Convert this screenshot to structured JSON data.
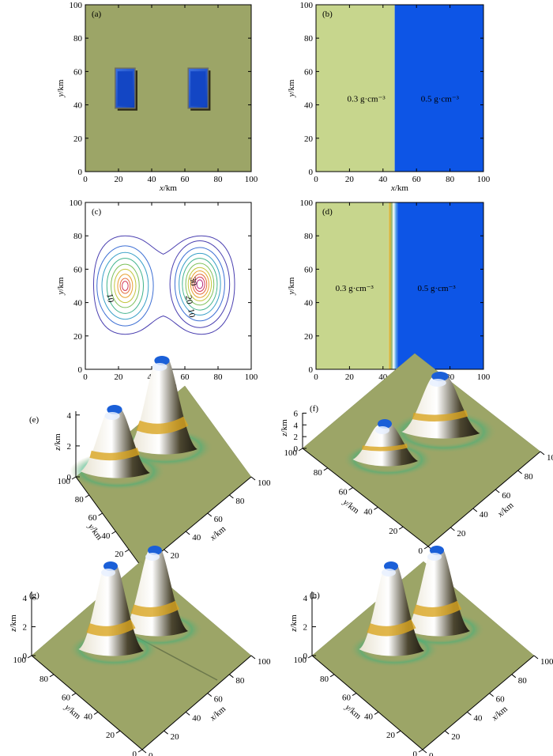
{
  "chart_data": [
    {
      "id": "a",
      "type": "heatmap",
      "panel_label": "(a)",
      "title": "",
      "xlabel": "x/km",
      "ylabel": "y/km",
      "xlim": [
        0,
        100
      ],
      "ylim": [
        0,
        100
      ],
      "xticks": [
        "0",
        "20",
        "40",
        "60",
        "80",
        "100"
      ],
      "yticks": [
        "0",
        "20",
        "40",
        "60",
        "80",
        "100"
      ],
      "background_color": "#9ca567",
      "blocks": [
        {
          "name": "left prism",
          "x": [
            18,
            30
          ],
          "y": [
            38,
            62
          ],
          "color": "#1346c4"
        },
        {
          "name": "right prism",
          "x": [
            62,
            74
          ],
          "y": [
            38,
            62
          ],
          "color": "#1346c4"
        }
      ]
    },
    {
      "id": "b",
      "type": "heatmap",
      "panel_label": "(b)",
      "xlabel": "x/km",
      "ylabel": "y/km",
      "xlim": [
        0,
        100
      ],
      "ylim": [
        0,
        100
      ],
      "xticks": [
        "0",
        "20",
        "40",
        "60",
        "80",
        "100"
      ],
      "yticks": [
        "0",
        "20",
        "40",
        "60",
        "80",
        "100"
      ],
      "regions": [
        {
          "x": [
            0,
            47
          ],
          "color": "#c7d68d",
          "label": "0.3 g·cm⁻³"
        },
        {
          "x": [
            47,
            100
          ],
          "color": "#0d55e6",
          "label": "0.5 g·cm⁻³"
        }
      ],
      "boundary_x": 47
    },
    {
      "id": "c",
      "type": "contour",
      "panel_label": "(c)",
      "xlabel": "x/km",
      "ylabel": "y/km",
      "xlim": [
        0,
        100
      ],
      "ylim": [
        0,
        100
      ],
      "xticks": [
        "0",
        "20",
        "40",
        "60",
        "80",
        "100"
      ],
      "yticks": [
        "0",
        "20",
        "40",
        "60",
        "80",
        "100"
      ],
      "centers": [
        {
          "x": 24,
          "y": 50
        },
        {
          "x": 69,
          "y": 51
        }
      ],
      "contour_labels": [
        "10",
        "10",
        "20",
        "30"
      ],
      "level_colors": [
        "#4a3fb0",
        "#3d6fd4",
        "#3aa0c8",
        "#40b38c",
        "#7cc05a",
        "#c4c63e",
        "#e8a030",
        "#e36a3a",
        "#d23a5a",
        "#b3237a"
      ]
    },
    {
      "id": "d",
      "type": "heatmap",
      "panel_label": "(d)",
      "xlabel": "x/km",
      "ylabel": "y/km",
      "xlim": [
        0,
        100
      ],
      "ylim": [
        0,
        100
      ],
      "xticks": [
        "0",
        "20",
        "40",
        "60",
        "80",
        "100"
      ],
      "yticks": [
        "0",
        "20",
        "40",
        "60",
        "80",
        "100"
      ],
      "regions": [
        {
          "x": [
            0,
            43
          ],
          "color": "#c7d68d",
          "label": "0.3 g·cm⁻³"
        },
        {
          "x": [
            49,
            100
          ],
          "color": "#0d55e6",
          "label": "0.5 g·cm⁻³"
        }
      ],
      "transition_x": [
        43,
        49
      ]
    },
    {
      "id": "e",
      "type": "surface",
      "panel_label": "(e)",
      "xlabel": "x/km",
      "ylabel": "y/km",
      "zlabel": "z/km",
      "xticks": [
        "0",
        "20",
        "40",
        "60",
        "80",
        "100"
      ],
      "yticks": [
        "0",
        "20",
        "40",
        "60",
        "80",
        "100"
      ],
      "zticks": [
        "0",
        "2",
        "4"
      ],
      "zlim": [
        0,
        4.5
      ]
    },
    {
      "id": "f",
      "type": "surface",
      "panel_label": "(f)",
      "xlabel": "x/km",
      "ylabel": "y/km",
      "zlabel": "z/km",
      "xticks": [
        "0",
        "20",
        "40",
        "60",
        "80",
        "100"
      ],
      "yticks": [
        "0",
        "20",
        "40",
        "60",
        "80",
        "100"
      ],
      "zticks": [
        "0",
        "2",
        "4",
        "6"
      ],
      "zlim": [
        0,
        7
      ]
    },
    {
      "id": "g",
      "type": "surface",
      "panel_label": "(g)",
      "xlabel": "x/km",
      "ylabel": "y/km",
      "zlabel": "z/km",
      "xticks": [
        "0",
        "20",
        "40",
        "60",
        "80",
        "100"
      ],
      "yticks": [
        "0",
        "20",
        "40",
        "60",
        "80",
        "100"
      ],
      "zticks": [
        "0",
        "2",
        "4"
      ],
      "zlim": [
        0,
        4.5
      ]
    },
    {
      "id": "h",
      "type": "surface",
      "panel_label": "(h)",
      "xlabel": "x/km",
      "ylabel": "y/km",
      "zlabel": "z/km",
      "xticks": [
        "0",
        "20",
        "40",
        "60",
        "80",
        "100"
      ],
      "yticks": [
        "0",
        "20",
        "40",
        "60",
        "80",
        "100"
      ],
      "zticks": [
        "0",
        "2",
        "4"
      ],
      "zlim": [
        0,
        4.5
      ]
    }
  ]
}
